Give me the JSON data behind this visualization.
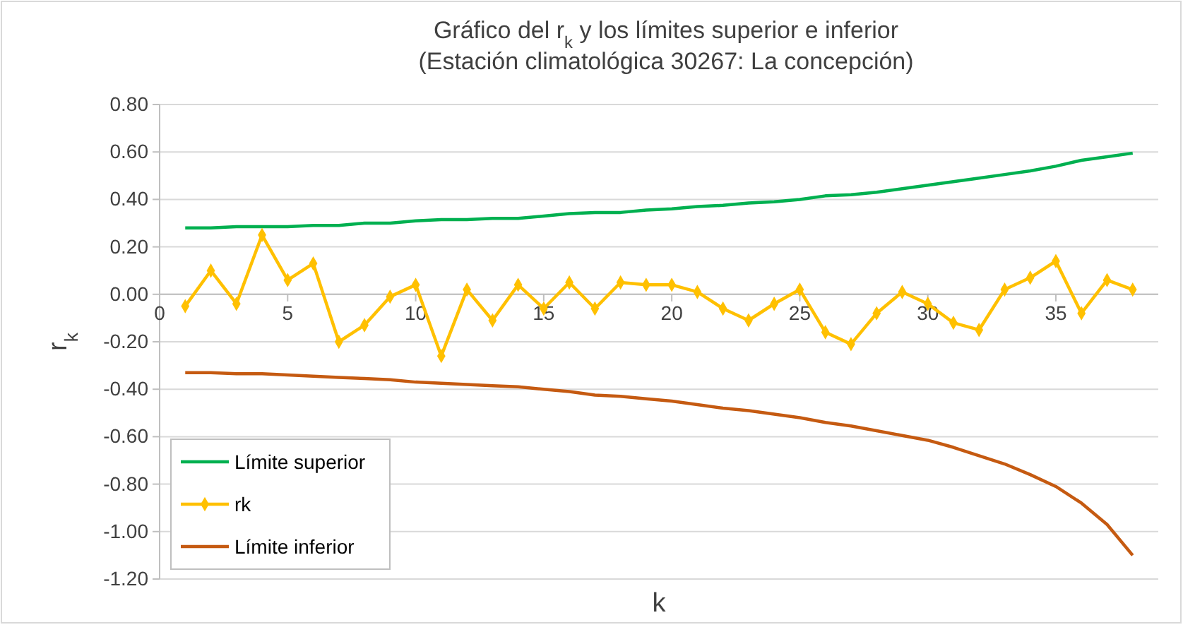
{
  "chart_data": {
    "type": "line",
    "title": "Gráfico del r$_{k}$ y los límites superior e inferior\n(Estación climatológica 30267: La concepción)",
    "xlabel": "k",
    "ylabel": "r$_{k}$",
    "x": [
      1,
      2,
      3,
      4,
      5,
      6,
      7,
      8,
      9,
      10,
      11,
      12,
      13,
      14,
      15,
      16,
      17,
      18,
      19,
      20,
      21,
      22,
      23,
      24,
      25,
      26,
      27,
      28,
      29,
      30,
      31,
      32,
      33,
      34,
      35,
      36,
      37,
      38
    ],
    "series": [
      {
        "name": "Límite superior",
        "color": "#00b050",
        "marker": "none",
        "values": [
          0.28,
          0.28,
          0.285,
          0.285,
          0.285,
          0.29,
          0.29,
          0.3,
          0.3,
          0.31,
          0.315,
          0.315,
          0.32,
          0.32,
          0.33,
          0.34,
          0.345,
          0.345,
          0.355,
          0.36,
          0.37,
          0.375,
          0.385,
          0.39,
          0.4,
          0.415,
          0.42,
          0.43,
          0.445,
          0.46,
          0.475,
          0.49,
          0.505,
          0.52,
          0.54,
          0.565,
          0.58,
          0.595
        ]
      },
      {
        "name": "rk",
        "color": "#ffc000",
        "marker": "diamond",
        "values": [
          -0.05,
          0.1,
          -0.04,
          0.25,
          0.06,
          0.13,
          -0.2,
          -0.13,
          -0.01,
          0.04,
          -0.26,
          0.02,
          -0.11,
          0.04,
          -0.06,
          0.05,
          -0.06,
          0.05,
          0.04,
          0.04,
          0.01,
          -0.06,
          -0.11,
          -0.04,
          0.02,
          -0.16,
          -0.21,
          -0.08,
          0.01,
          -0.04,
          -0.12,
          -0.15,
          0.02,
          0.07,
          0.14,
          -0.08,
          0.06,
          0.02
        ]
      },
      {
        "name": "Límite inferior",
        "color": "#c55a11",
        "marker": "none",
        "values": [
          -0.33,
          -0.33,
          -0.335,
          -0.335,
          -0.34,
          -0.345,
          -0.35,
          -0.355,
          -0.36,
          -0.37,
          -0.375,
          -0.38,
          -0.385,
          -0.39,
          -0.4,
          -0.41,
          -0.425,
          -0.43,
          -0.44,
          -0.45,
          -0.465,
          -0.48,
          -0.49,
          -0.505,
          -0.52,
          -0.54,
          -0.555,
          -0.575,
          -0.595,
          -0.615,
          -0.645,
          -0.68,
          -0.715,
          -0.76,
          -0.81,
          -0.88,
          -0.97,
          -1.1
        ]
      }
    ],
    "xlim": [
      0,
      39
    ],
    "xticks": [
      0,
      5,
      10,
      15,
      20,
      25,
      30,
      35
    ],
    "ylim": [
      -1.2,
      0.8
    ],
    "yticks": [
      {
        "value": -1.2,
        "label": "-1.20"
      },
      {
        "value": -1,
        "label": "-1.00"
      },
      {
        "value": -0.8,
        "label": "-0.80"
      },
      {
        "value": -0.6,
        "label": "-0.60"
      },
      {
        "value": -0.4,
        "label": "-0.40"
      },
      {
        "value": -0.2,
        "label": "-0.20"
      },
      {
        "value": 0,
        "label": "0.00"
      },
      {
        "value": 0.2,
        "label": "0.20"
      },
      {
        "value": 0.4,
        "label": "0.40"
      },
      {
        "value": 0.6,
        "label": "0.60"
      },
      {
        "value": 0.8,
        "label": "0.80"
      }
    ],
    "grid": "y",
    "legend": "bottom left",
    "line_style": "solid"
  }
}
